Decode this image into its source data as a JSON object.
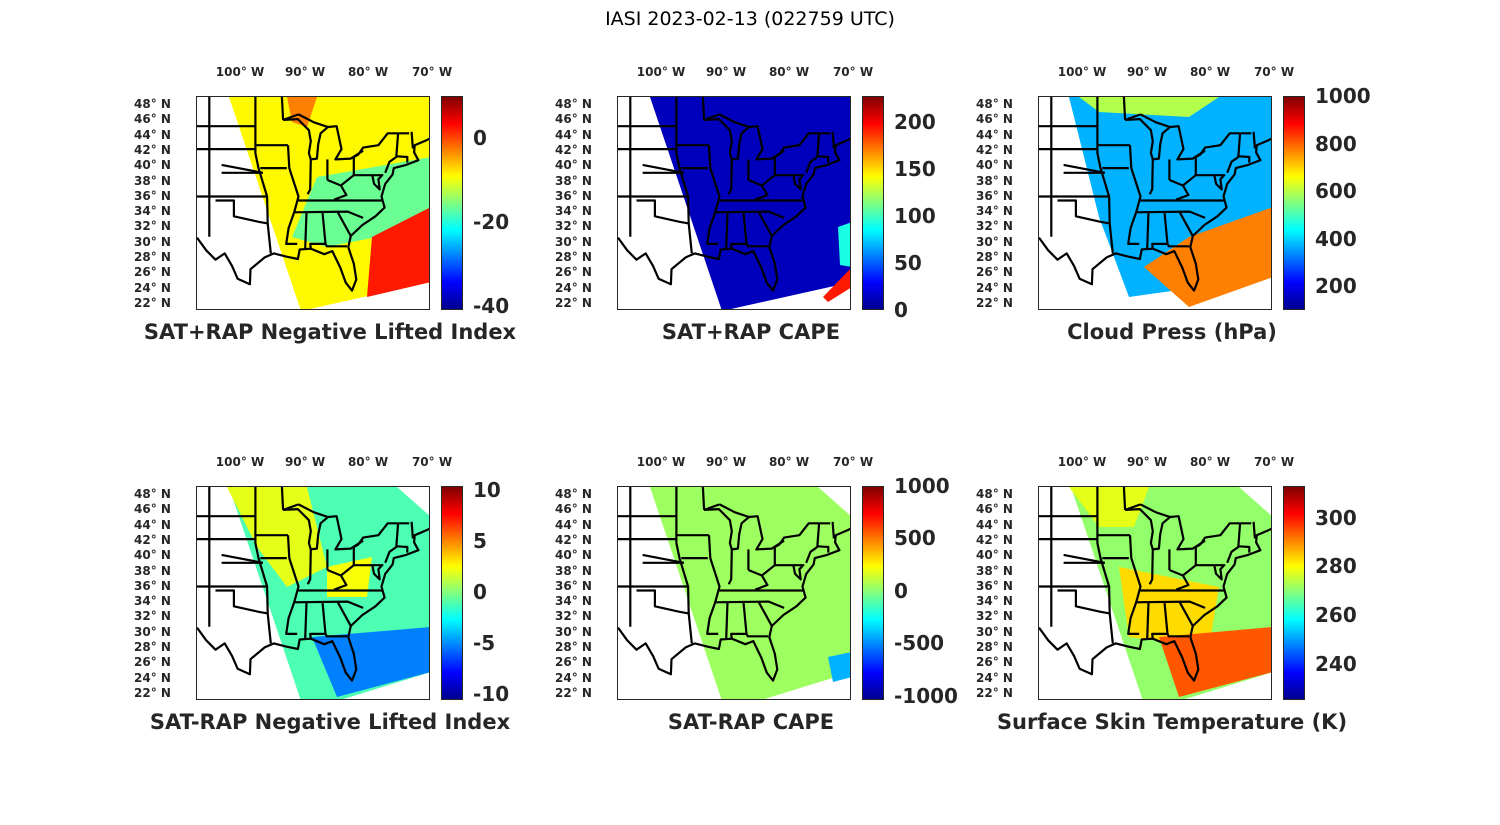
{
  "figure_title": "IASI 2023-02-13 (022759 UTC)",
  "lon_labels": [
    "100° W",
    "90° W",
    "80° W",
    "70° W"
  ],
  "lat_labels": [
    "48° N",
    "46° N",
    "44° N",
    "42° N",
    "40° N",
    "38° N",
    "36° N",
    "34° N",
    "32° N",
    "30° N",
    "28° N",
    "26° N",
    "24° N",
    "22° N"
  ],
  "panels": [
    {
      "title": "SAT+RAP Negative Lifted Index",
      "colorbar": {
        "range": [
          -41,
          10
        ],
        "ticks": [
          {
            "label": "0",
            "value": 0
          },
          {
            "label": "-20",
            "value": -20
          },
          {
            "label": "-40",
            "value": -40
          }
        ]
      }
    },
    {
      "title": "SAT+RAP CAPE",
      "colorbar": {
        "range": [
          0,
          228
        ],
        "ticks": [
          {
            "label": "200",
            "value": 200
          },
          {
            "label": "150",
            "value": 150
          },
          {
            "label": "100",
            "value": 100
          },
          {
            "label": "50",
            "value": 50
          },
          {
            "label": "0",
            "value": 0
          }
        ]
      }
    },
    {
      "title": "Cloud Press (hPa)",
      "colorbar": {
        "range": [
          100,
          1000
        ],
        "ticks": [
          {
            "label": "1000",
            "value": 1000
          },
          {
            "label": "800",
            "value": 800
          },
          {
            "label": "600",
            "value": 600
          },
          {
            "label": "400",
            "value": 400
          },
          {
            "label": "200",
            "value": 200
          }
        ]
      }
    },
    {
      "title": "SAT-RAP Negative Lifted Index",
      "colorbar": {
        "range": [
          -10.6,
          10.4
        ],
        "ticks": [
          {
            "label": "10",
            "value": 10
          },
          {
            "label": "5",
            "value": 5
          },
          {
            "label": "0",
            "value": 0
          },
          {
            "label": "-5",
            "value": -5
          },
          {
            "label": "-10",
            "value": -10
          }
        ]
      }
    },
    {
      "title": "SAT-RAP CAPE",
      "colorbar": {
        "range": [
          -1040,
          1000
        ],
        "ticks": [
          {
            "label": "1000",
            "value": 1000
          },
          {
            "label": "500",
            "value": 500
          },
          {
            "label": "0",
            "value": 0
          },
          {
            "label": "-500",
            "value": -500
          },
          {
            "label": "-1000",
            "value": -1000
          }
        ]
      }
    },
    {
      "title": "Surface Skin Temperature (K)",
      "colorbar": {
        "range": [
          225,
          313
        ],
        "ticks": [
          {
            "label": "300",
            "value": 300
          },
          {
            "label": "280",
            "value": 280
          },
          {
            "label": "260",
            "value": 260
          },
          {
            "label": "240",
            "value": 240
          }
        ]
      }
    }
  ]
}
